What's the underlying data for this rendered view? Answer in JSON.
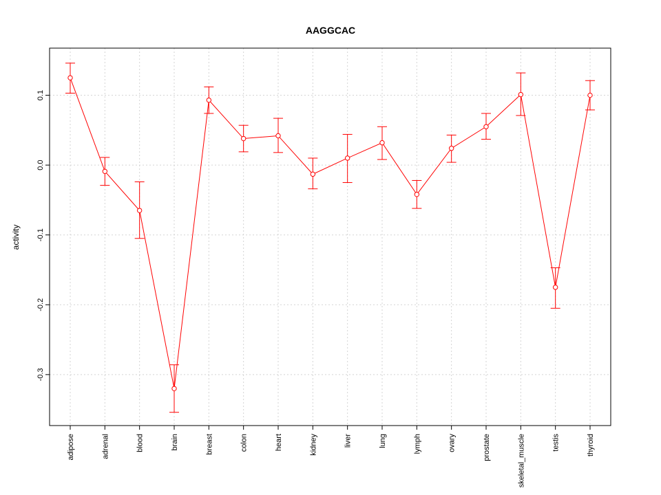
{
  "chart_data": {
    "type": "line",
    "title": "AAGGCAC",
    "xlabel": "",
    "ylabel": "activity",
    "ylim": [
      -0.373,
      0.1675
    ],
    "yticks": [
      -0.3,
      -0.2,
      -0.1,
      0.0,
      0.1
    ],
    "ytick_labels": [
      "-0.3",
      "-0.2",
      "-0.1",
      "0.0",
      "0.1"
    ],
    "grid": true,
    "categories": [
      "adipose",
      "adrenal",
      "blood",
      "brain",
      "breast",
      "colon",
      "heart",
      "kidney",
      "liver",
      "lung",
      "lymph",
      "ovary",
      "prostate",
      "skeletal_muscle",
      "testis",
      "thyroid"
    ],
    "series": [
      {
        "name": "activity",
        "color": "#ff0000",
        "values": [
          0.125,
          -0.009,
          -0.065,
          -0.32,
          0.093,
          0.038,
          0.042,
          -0.013,
          0.01,
          0.032,
          -0.042,
          0.024,
          0.055,
          0.101,
          -0.175,
          0.1
        ],
        "upper": [
          0.146,
          0.011,
          -0.024,
          -0.286,
          0.112,
          0.057,
          0.067,
          0.01,
          0.044,
          0.055,
          -0.022,
          0.043,
          0.074,
          0.132,
          -0.147,
          0.121
        ],
        "lower": [
          0.103,
          -0.029,
          -0.105,
          -0.354,
          0.074,
          0.019,
          0.018,
          -0.034,
          -0.025,
          0.008,
          -0.062,
          0.004,
          0.037,
          0.071,
          -0.205,
          0.079
        ]
      }
    ]
  }
}
